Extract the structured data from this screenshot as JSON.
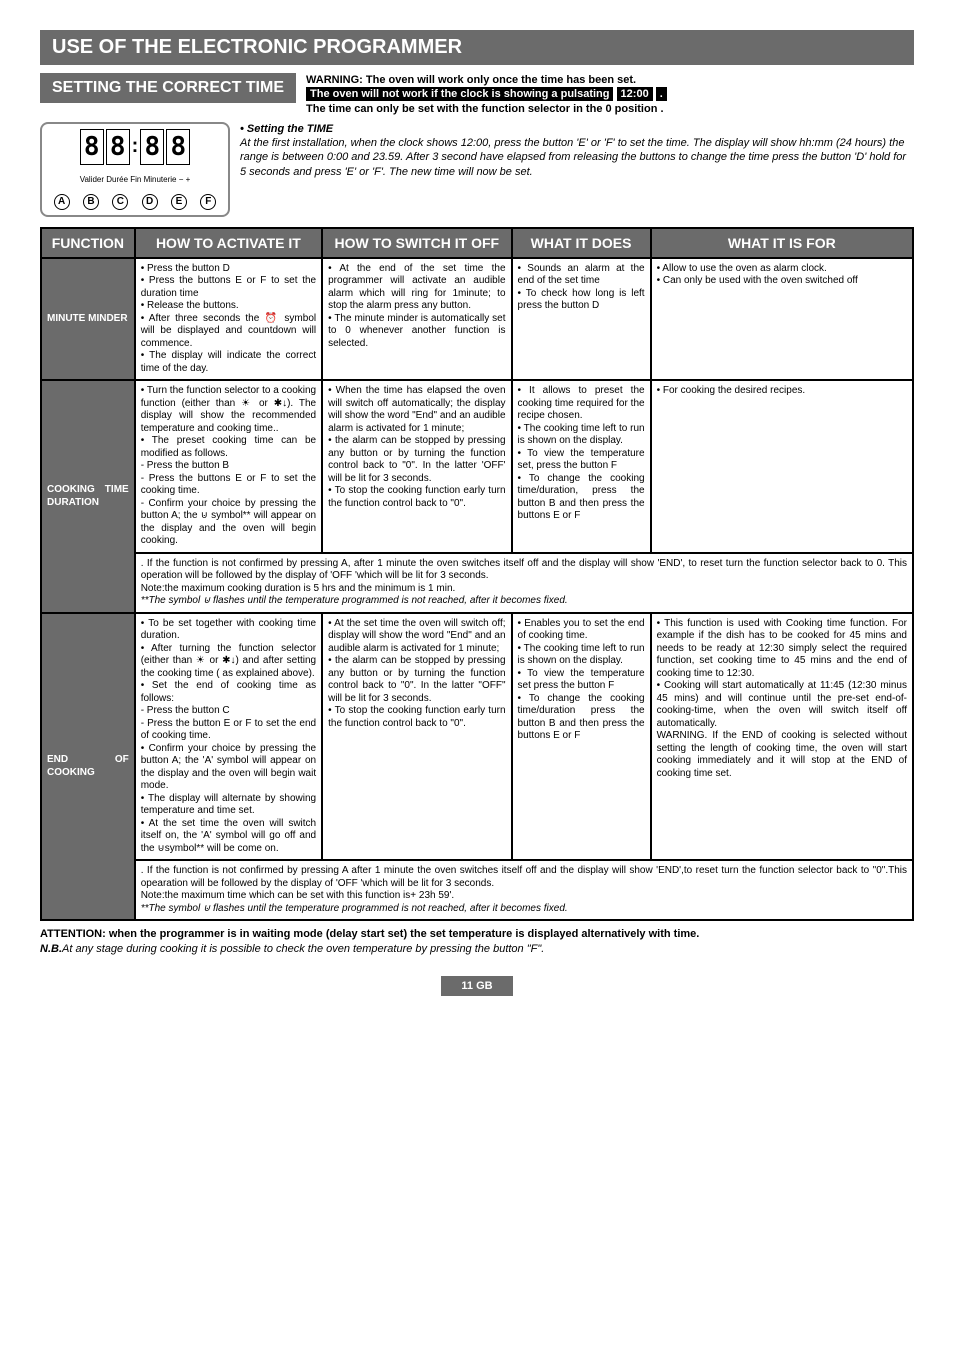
{
  "title": "USE OF THE ELECTRONIC PROGRAMMER",
  "settingTitle": "SETTING THE CORRECT TIME",
  "warning": {
    "line1": "WARNING: The oven will work only once the time has been set.",
    "line2a": "The oven will not work if the clock is showing a pulsating",
    "line2b": "12:00",
    "line2c": ".",
    "line3": "The time can only be set with the function selector in the 0 position ."
  },
  "clock": {
    "digits": [
      "8",
      "8",
      ":",
      "8",
      "8"
    ],
    "labels": "Valider Durée   Fin  Minuterie   −    +",
    "buttons": [
      "A",
      "B",
      "C",
      "D",
      "E",
      "F"
    ]
  },
  "instr": {
    "heading": "• Setting the TIME",
    "body": "At the first installation, when the clock shows 12:00, press the button 'E' or 'F' to set the time. The display will show hh:mm (24 hours) the range is between 0:00 and 23.59. After 3 second have elapsed from releasing the buttons to change the time press the button 'D' hold for 5 seconds and press 'E' or 'F'. The new time will now be set."
  },
  "headers": {
    "function": "FUNCTION",
    "activate": "HOW TO ACTIVATE IT",
    "switchoff": "HOW TO SWITCH IT OFF",
    "does": "WHAT IT DOES",
    "for": "WHAT IT IS FOR"
  },
  "rows": {
    "minute": {
      "label": "MINUTE MINDER",
      "activate": "• Press the button D\n• Press the buttons E or F to set the duration time\n• Release the buttons.\n• After three seconds the ⏰ symbol will be displayed and countdown will commence.\n• The display will indicate the correct time of the day.",
      "switchoff": "• At the end of the set time the programmer will activate an audible alarm which will ring for 1minute; to stop the alarm press any button.\n• The minute minder is automatically set to 0 whenever another function is selected.",
      "does": "• Sounds an alarm at the end of the set time\n• To check how long is left press the button D",
      "for": "• Allow to use the oven as alarm clock.\n• Can only be used with the oven switched off"
    },
    "cooking": {
      "label": "COOKING TIME DURATION",
      "activate": "• Turn the function selector to a cooking function (either than ☀ or ✱↓). The display will show the recommended temperature and cooking time..\n• The preset cooking time can be modified as follows.\n- Press the button B\n- Press the buttons E or F to set the cooking time.\n- Confirm your choice by pressing the button A; the ⊍ symbol** will appear on the display and the oven will begin cooking.",
      "switchoff": "• When the time has elapsed the oven will switch off automatically; the display will show the word \"End\" and an audible alarm is activated for 1 minute;\n• the alarm can be stopped by pressing any button or by turning the function control back to \"0\". In the latter 'OFF' will be lit for 3 seconds.\n• To stop the cooking function early turn the function control back to \"0\".",
      "does": "• It allows to preset the cooking time required for the recipe chosen.\n• The cooking time left to run is shown on the display.\n• To view the temperature set, press the button F\n• To change the cooking time/duration, press the button B and then press the buttons E or F",
      "for": "• For cooking the desired recipes.",
      "note": ". If the function is not confirmed by pressing A, after 1 minute the oven switches itself off and the display will show 'END', to reset turn the function selector back to 0. This operation will be followed by the display of 'OFF 'which will be lit for 3 seconds.\nNote:the maximum cooking duration is 5 hrs and the minimum is 1 min.",
      "noteItalic": "**The symbol ⊍ flashes until the temperature programmed is not reached, after it becomes fixed."
    },
    "end": {
      "label": "END OF COOKING",
      "activate": "• To be set together with cooking time duration.\n• After turning the function selector (either than ☀ or ✱↓) and after setting the cooking time ( as explained above).\n• Set the end of cooking time as follows:\n- Press the button C\n- Press the button E or F to set the end of cooking time.\n• Confirm your choice by pressing the button A; the 'A' symbol will appear on the display and the oven will begin wait mode.\n• The display will alternate by showing temperature and time set.\n• At the set time the oven will switch itself on, the 'A' symbol will go off and the ⊍symbol** will be come on.",
      "switchoff": "• At the set time the oven will switch off; display will show the word \"End\" and an audible alarm is activated for 1 minute;\n• the alarm can be stopped by pressing any button or by turning the function control back to \"0\". In the latter \"OFF\" will be lit for 3 seconds.\n• To stop the cooking function early turn the function control back to \"0\".",
      "does": "• Enables you to set the end of cooking time.\n• The cooking time left to run is shown on the display.\n• To view the temperature set press the button F\n• To change the cooking time/duration press the button B and then press the buttons E or F",
      "for": "• This function is used with Cooking time function. For example if the dish has to be cooked for 45 mins and needs to be ready at 12:30 simply select the required function, set cooking time to 45 mins and the end of cooking time to 12:30.\n• Cooking will start automatically at 11:45 (12:30 minus 45 mins) and will continue until the pre-set end-of-cooking-time, when the oven will switch itself off automatically.\nWARNING. If the END of cooking is selected without setting the length of cooking time, the oven will start cooking immediately and it will stop at the END of cooking time set.",
      "note": ". If the function is not confirmed by pressing A after 1 minute the oven switches itself off and the display will show 'END',to reset turn the function selector back to \"0\".This opearation will be followed by the display of 'OFF 'which will be lit for 3 seconds.\nNote:the maximum time which can be set with this function is+ 23h 59'.",
      "noteItalic": "**The symbol ⊍ flashes until the temperature programmed is not reached, after it becomes fixed."
    }
  },
  "footer": {
    "line1": "ATTENTION: when the programmer is in waiting mode (delay start set) the set temperature is displayed alternatively with time.",
    "line2a": "N.B.",
    "line2b": "At any stage during cooking it is possible to check the oven temperature by pressing the button \"F\"."
  },
  "page": "11 GB"
}
